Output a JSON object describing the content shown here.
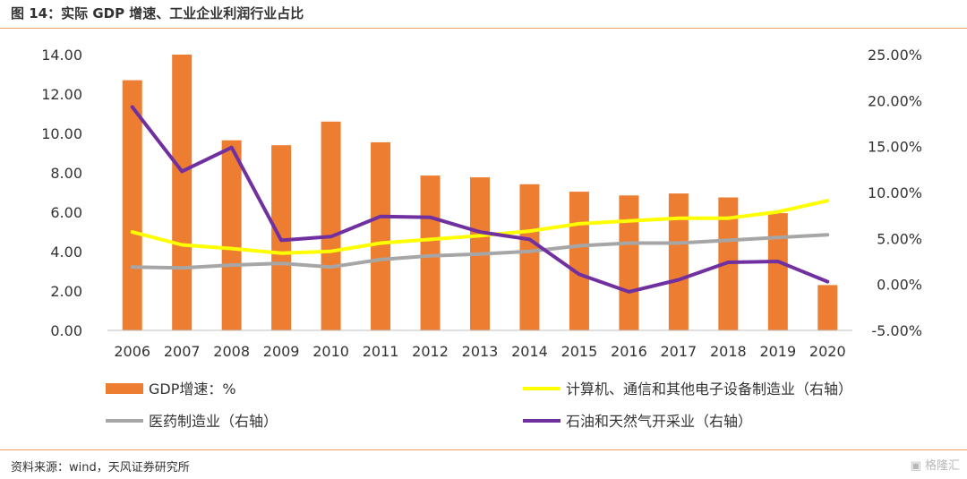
{
  "header": {
    "title": "图 14：实际 GDP 增速、工业企业利润行业占比"
  },
  "footer": {
    "source": "资料来源：wind，天风证券研究所",
    "watermark": "格隆汇"
  },
  "colors": {
    "gdp": "#ED7D31",
    "electronics": "#FFFF00",
    "pharma": "#A6A6A6",
    "oil": "#7030A0",
    "rule": "#F0A060"
  },
  "chart_data": {
    "type": "bar",
    "title": "",
    "categories": [
      "2006",
      "2007",
      "2008",
      "2009",
      "2010",
      "2011",
      "2012",
      "2013",
      "2014",
      "2015",
      "2016",
      "2017",
      "2018",
      "2019",
      "2020"
    ],
    "left_axis": {
      "range": [
        0,
        14
      ],
      "ticks": [
        "0.00",
        "2.00",
        "4.00",
        "6.00",
        "8.00",
        "10.00",
        "12.00",
        "14.00"
      ]
    },
    "right_axis": {
      "range": [
        -5,
        25
      ],
      "ticks": [
        "-5.00%",
        "0.00%",
        "5.00%",
        "10.00%",
        "15.00%",
        "20.00%",
        "25.00%"
      ]
    },
    "grid": false,
    "legend_position": "bottom",
    "series": [
      {
        "name": "GDP增速：%",
        "type": "bar",
        "axis": "left",
        "color": "#ED7D31",
        "values": [
          12.7,
          14.0,
          9.65,
          9.4,
          10.6,
          9.55,
          7.86,
          7.77,
          7.42,
          7.04,
          6.85,
          6.95,
          6.75,
          5.95,
          2.3
        ]
      },
      {
        "name": "计算机、通信和其他电子设备制造业（右轴）",
        "type": "line",
        "axis": "right",
        "color": "#FFFF00",
        "values": [
          5.7,
          4.3,
          3.9,
          3.4,
          3.6,
          4.5,
          4.9,
          5.3,
          5.8,
          6.6,
          6.9,
          7.2,
          7.2,
          7.9,
          9.1
        ]
      },
      {
        "name": "医药制造业（右轴）",
        "type": "line",
        "axis": "right",
        "color": "#A6A6A6",
        "values": [
          1.9,
          1.8,
          2.1,
          2.3,
          1.9,
          2.7,
          3.1,
          3.3,
          3.6,
          4.2,
          4.5,
          4.5,
          4.8,
          5.1,
          5.4
        ]
      },
      {
        "name": "石油和天然气开采业（右轴）",
        "type": "line",
        "axis": "right",
        "color": "#7030A0",
        "values": [
          19.3,
          12.3,
          14.9,
          4.8,
          5.2,
          7.4,
          7.3,
          5.7,
          4.9,
          1.1,
          -0.8,
          0.5,
          2.4,
          2.5,
          0.3
        ]
      }
    ]
  }
}
